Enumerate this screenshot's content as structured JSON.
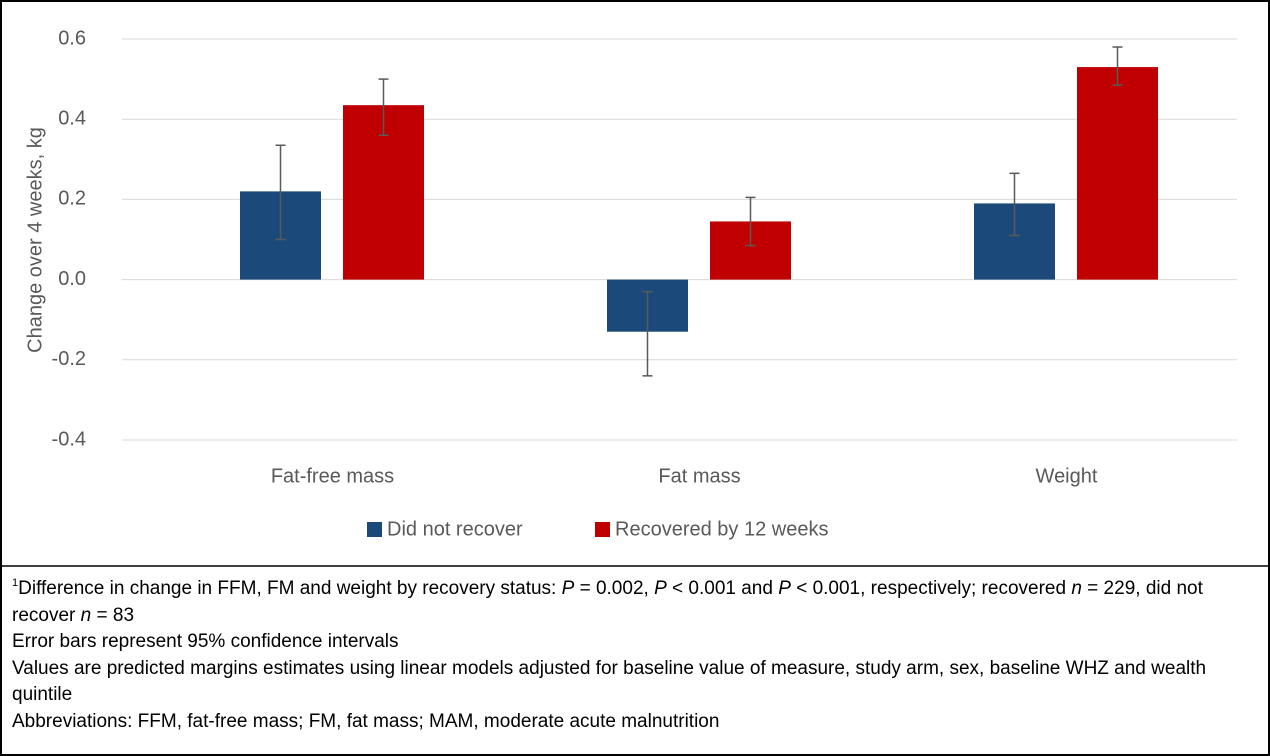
{
  "chart_data": {
    "type": "bar",
    "y_label": "Change over 4 weeks, kg",
    "categories": [
      "Fat-free mass",
      "Fat mass",
      "Weight"
    ],
    "series": [
      {
        "name": "Did not recover",
        "color": "#1b4a7a",
        "values": [
          0.22,
          -0.13,
          0.19
        ],
        "ci_low": [
          0.1,
          -0.24,
          0.11
        ],
        "ci_high": [
          0.335,
          -0.03,
          0.265
        ]
      },
      {
        "name": "Recovered by 12 weeks",
        "color": "#c00000",
        "values": [
          0.435,
          0.145,
          0.53
        ],
        "ci_low": [
          0.36,
          0.085,
          0.485
        ],
        "ci_high": [
          0.5,
          0.205,
          0.58
        ]
      }
    ],
    "ylim": [
      -0.4,
      0.6
    ],
    "yticks": [
      -0.4,
      -0.2,
      {
        "value": 0,
        "label": "0.0"
      },
      0.2,
      0.4,
      0.6
    ],
    "grid": true,
    "legend": "bottom"
  },
  "notes": {
    "first": {
      "marker": "1",
      "parts": [
        "Difference in change in FFM, FM and weight by recovery status: ",
        "P",
        " = 0.002, ",
        "P",
        " < 0.001 and ",
        "P",
        " < 0.001, respectively; recovered ",
        "n",
        " = 229, did not recover ",
        "n",
        " = 83"
      ]
    },
    "lines": [
      "Error bars represent 95% confidence intervals",
      "Values are predicted margins estimates using linear models adjusted for baseline value of measure, study arm, sex, baseline WHZ and wealth quintile",
      "Abbreviations: FFM, fat-free mass; FM, fat mass; MAM, moderate acute malnutrition"
    ]
  }
}
